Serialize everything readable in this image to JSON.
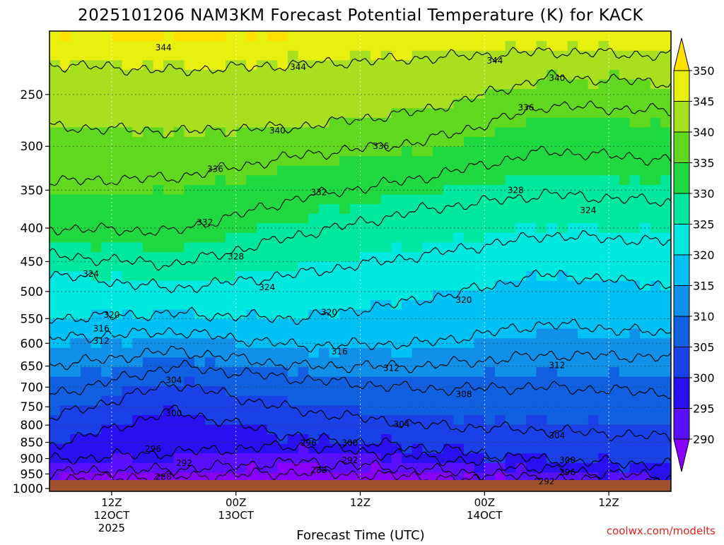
{
  "title": "2025101206 NAM3KM Forecast Potential Temperature (K) for KACK",
  "credit": "coolwx.com/modelts",
  "chart_data": {
    "type": "heatmap",
    "title": "2025101206 NAM3KM Forecast Potential Temperature (K) for KACK",
    "xlabel": "Forecast Time (UTC)",
    "ylabel": "",
    "x_unit": "forecast hour from 2025-10-12 06Z",
    "xlim": [
      0,
      60
    ],
    "x_ticks": [
      {
        "x": 6,
        "lines": [
          "12Z",
          "12OCT",
          "2025"
        ]
      },
      {
        "x": 18,
        "lines": [
          "00Z",
          "13OCT"
        ]
      },
      {
        "x": 30,
        "lines": [
          "12Z"
        ]
      },
      {
        "x": 42,
        "lines": [
          "00Z",
          "14OCT"
        ]
      },
      {
        "x": 54,
        "lines": [
          "12Z"
        ]
      }
    ],
    "y_scale": "log-pressure (inverted)",
    "ylim": [
      1010,
      200
    ],
    "y_ticks": [
      250,
      300,
      350,
      400,
      450,
      500,
      550,
      600,
      650,
      700,
      750,
      800,
      850,
      900,
      950,
      1000
    ],
    "colorbar": {
      "unit": "K",
      "levels": [
        290,
        295,
        300,
        305,
        310,
        315,
        320,
        325,
        330,
        335,
        340,
        345,
        350
      ],
      "colors": [
        "#8a00ff",
        "#5a10ff",
        "#2a10f0",
        "#1a40e8",
        "#1060e0",
        "#1090e8",
        "#00c0f4",
        "#00e8e0",
        "#00e8a0",
        "#20d840",
        "#60d820",
        "#a8e020",
        "#e8f010",
        "#ffe000"
      ]
    },
    "grid": "dotted",
    "surface": "brown band below ~1008 hPa",
    "contours": [
      {
        "theta": 288,
        "p_at_x": {
          "x": [
            0,
            12,
            24,
            36,
            48,
            60
          ],
          "p": [
            965,
            960,
            945,
            960,
            990,
            1000
          ]
        }
      },
      {
        "theta": 292,
        "p_at_x": {
          "x": [
            0,
            12,
            24,
            36,
            48,
            60
          ],
          "p": [
            945,
            935,
            910,
            935,
            965,
            985
          ]
        }
      },
      {
        "theta": 296,
        "p_at_x": {
          "x": [
            0,
            12,
            24,
            36,
            48,
            60
          ],
          "p": [
            905,
            880,
            860,
            895,
            935,
            960
          ]
        }
      },
      {
        "theta": 300,
        "p_at_x": {
          "x": [
            0,
            12,
            24,
            36,
            48,
            60
          ],
          "p": [
            860,
            760,
            835,
            865,
            905,
            920
          ]
        }
      },
      {
        "theta": 304,
        "p_at_x": {
          "x": [
            0,
            12,
            24,
            36,
            48,
            60
          ],
          "p": [
            780,
            690,
            760,
            800,
            815,
            835
          ]
        }
      },
      {
        "theta": 308,
        "p_at_x": {
          "x": [
            0,
            12,
            24,
            36,
            48,
            60
          ],
          "p": [
            720,
            650,
            680,
            705,
            700,
            715
          ]
        }
      },
      {
        "theta": 312,
        "p_at_x": {
          "x": [
            0,
            12,
            24,
            36,
            48,
            60
          ],
          "p": [
            650,
            615,
            650,
            650,
            625,
            630
          ]
        }
      },
      {
        "theta": 316,
        "p_at_x": {
          "x": [
            0,
            12,
            24,
            36,
            48,
            60
          ],
          "p": [
            590,
            575,
            605,
            600,
            560,
            580
          ]
        }
      },
      {
        "theta": 320,
        "p_at_x": {
          "x": [
            0,
            12,
            24,
            36,
            48,
            60
          ],
          "p": [
            550,
            540,
            550,
            515,
            470,
            490
          ]
        }
      },
      {
        "theta": 324,
        "p_at_x": {
          "x": [
            0,
            12,
            24,
            36,
            48,
            60
          ],
          "p": [
            470,
            495,
            470,
            440,
            410,
            420
          ]
        }
      },
      {
        "theta": 328,
        "p_at_x": {
          "x": [
            0,
            12,
            24,
            36,
            48,
            60
          ],
          "p": [
            440,
            455,
            410,
            375,
            355,
            365
          ]
        }
      },
      {
        "theta": 332,
        "p_at_x": {
          "x": [
            0,
            12,
            24,
            36,
            48,
            60
          ],
          "p": [
            400,
            405,
            360,
            335,
            305,
            315
          ]
        }
      },
      {
        "theta": 336,
        "p_at_x": {
          "x": [
            0,
            12,
            24,
            36,
            48,
            60
          ],
          "p": [
            340,
            335,
            310,
            295,
            260,
            265
          ]
        }
      },
      {
        "theta": 340,
        "p_at_x": {
          "x": [
            0,
            12,
            24,
            36,
            48,
            60
          ],
          "p": [
            280,
            285,
            280,
            265,
            235,
            240
          ]
        }
      },
      {
        "theta": 344,
        "p_at_x": {
          "x": [
            0,
            12,
            24,
            36,
            48,
            60
          ],
          "p": [
            225,
            230,
            225,
            220,
            215,
            218
          ]
        }
      }
    ],
    "contour_labels": [
      {
        "text": "344",
        "x": 11,
        "p": 212
      },
      {
        "text": "344",
        "x": 24,
        "p": 227
      },
      {
        "text": "344",
        "x": 43,
        "p": 222
      },
      {
        "text": "340",
        "x": 49,
        "p": 236
      },
      {
        "text": "336",
        "x": 46,
        "p": 262
      },
      {
        "text": "340",
        "x": 22,
        "p": 284
      },
      {
        "text": "336",
        "x": 32,
        "p": 300
      },
      {
        "text": "336",
        "x": 16,
        "p": 325
      },
      {
        "text": "328",
        "x": 45,
        "p": 350
      },
      {
        "text": "332",
        "x": 26,
        "p": 353
      },
      {
        "text": "324",
        "x": 52,
        "p": 376
      },
      {
        "text": "332",
        "x": 15,
        "p": 392
      },
      {
        "text": "328",
        "x": 18,
        "p": 442
      },
      {
        "text": "324",
        "x": 4,
        "p": 470
      },
      {
        "text": "324",
        "x": 21,
        "p": 493
      },
      {
        "text": "320",
        "x": 40,
        "p": 515
      },
      {
        "text": "320",
        "x": 27,
        "p": 538
      },
      {
        "text": "320",
        "x": 6,
        "p": 543
      },
      {
        "text": "316",
        "x": 5,
        "p": 570
      },
      {
        "text": "312",
        "x": 5,
        "p": 595
      },
      {
        "text": "316",
        "x": 28,
        "p": 618
      },
      {
        "text": "312",
        "x": 33,
        "p": 655
      },
      {
        "text": "312",
        "x": 49,
        "p": 648
      },
      {
        "text": "304",
        "x": 12,
        "p": 683
      },
      {
        "text": "308",
        "x": 40,
        "p": 718
      },
      {
        "text": "300",
        "x": 12,
        "p": 768
      },
      {
        "text": "304",
        "x": 34,
        "p": 798
      },
      {
        "text": "304",
        "x": 49,
        "p": 830
      },
      {
        "text": "296",
        "x": 10,
        "p": 870
      },
      {
        "text": "296",
        "x": 25,
        "p": 852
      },
      {
        "text": "300",
        "x": 29,
        "p": 852
      },
      {
        "text": "300",
        "x": 50,
        "p": 905
      },
      {
        "text": "292",
        "x": 13,
        "p": 915
      },
      {
        "text": "292",
        "x": 29,
        "p": 905
      },
      {
        "text": "296",
        "x": 50,
        "p": 945
      },
      {
        "text": "288",
        "x": 11,
        "p": 960
      },
      {
        "text": "288",
        "x": 26,
        "p": 938
      },
      {
        "text": "292",
        "x": 48,
        "p": 975
      }
    ]
  }
}
